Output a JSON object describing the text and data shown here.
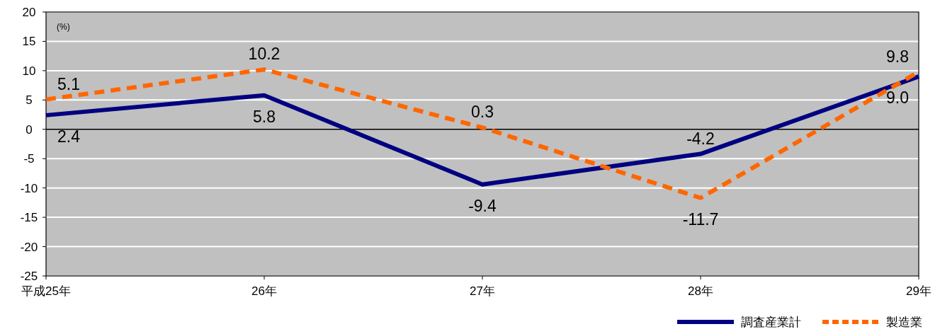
{
  "chart_data": {
    "type": "line",
    "categories": [
      "平成25年",
      "26年",
      "27年",
      "28年",
      "29年"
    ],
    "series": [
      {
        "name": "調査産業計",
        "color": "#000080",
        "values": [
          2.4,
          5.8,
          -9.4,
          -4.2,
          9.0
        ],
        "value_labels": [
          "2.4",
          "5.8",
          "-9.4",
          "-4.2",
          "9.0"
        ],
        "line_style": "solid"
      },
      {
        "name": "製造業",
        "color": "#ff6600",
        "values": [
          5.1,
          10.2,
          0.3,
          -11.7,
          9.8
        ],
        "value_labels": [
          "5.1",
          "10.2",
          "0.3",
          "-11.7",
          "9.8"
        ],
        "line_style": "dashed"
      }
    ],
    "ylim": [
      -25,
      20
    ],
    "yticks": [
      -25,
      -20,
      -15,
      -10,
      -5,
      0,
      5,
      10,
      15,
      20
    ],
    "annotations": [
      "(%)"
    ],
    "grid": "y",
    "legend": "bottom right",
    "marker": "none"
  }
}
